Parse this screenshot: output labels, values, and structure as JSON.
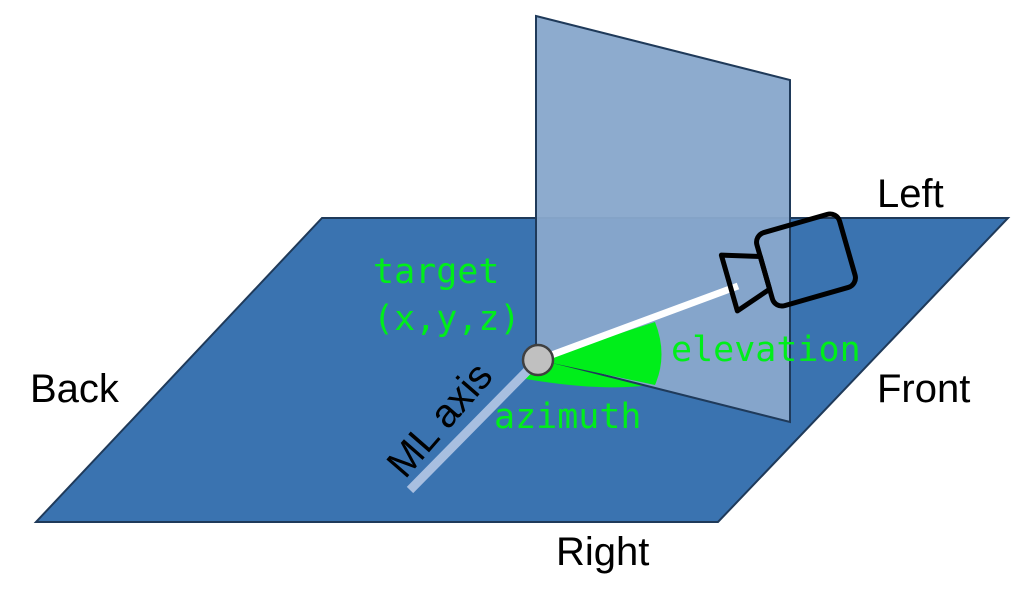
{
  "labels": {
    "left": "Left",
    "right": "Right",
    "front": "Front",
    "back": "Back",
    "ml_axis": "ML axis",
    "target_line1": "target",
    "target_line2": "(x,y,z)",
    "elevation": "elevation",
    "azimuth": "azimuth"
  },
  "colors": {
    "floor": "#3a73b0",
    "floor_edge": "#1f3a5a",
    "vertical_plane": "#88a8cc",
    "angle_fill": "#00ee1a",
    "angle_text": "#00ee1a",
    "ml_axis_line": "#a8bfe0",
    "view_line": "#ffffff",
    "target_point": "#c0c0c0",
    "camera_stroke": "#000000"
  },
  "icons": {
    "camera": "video-camera-icon",
    "target": "target-point-icon"
  }
}
